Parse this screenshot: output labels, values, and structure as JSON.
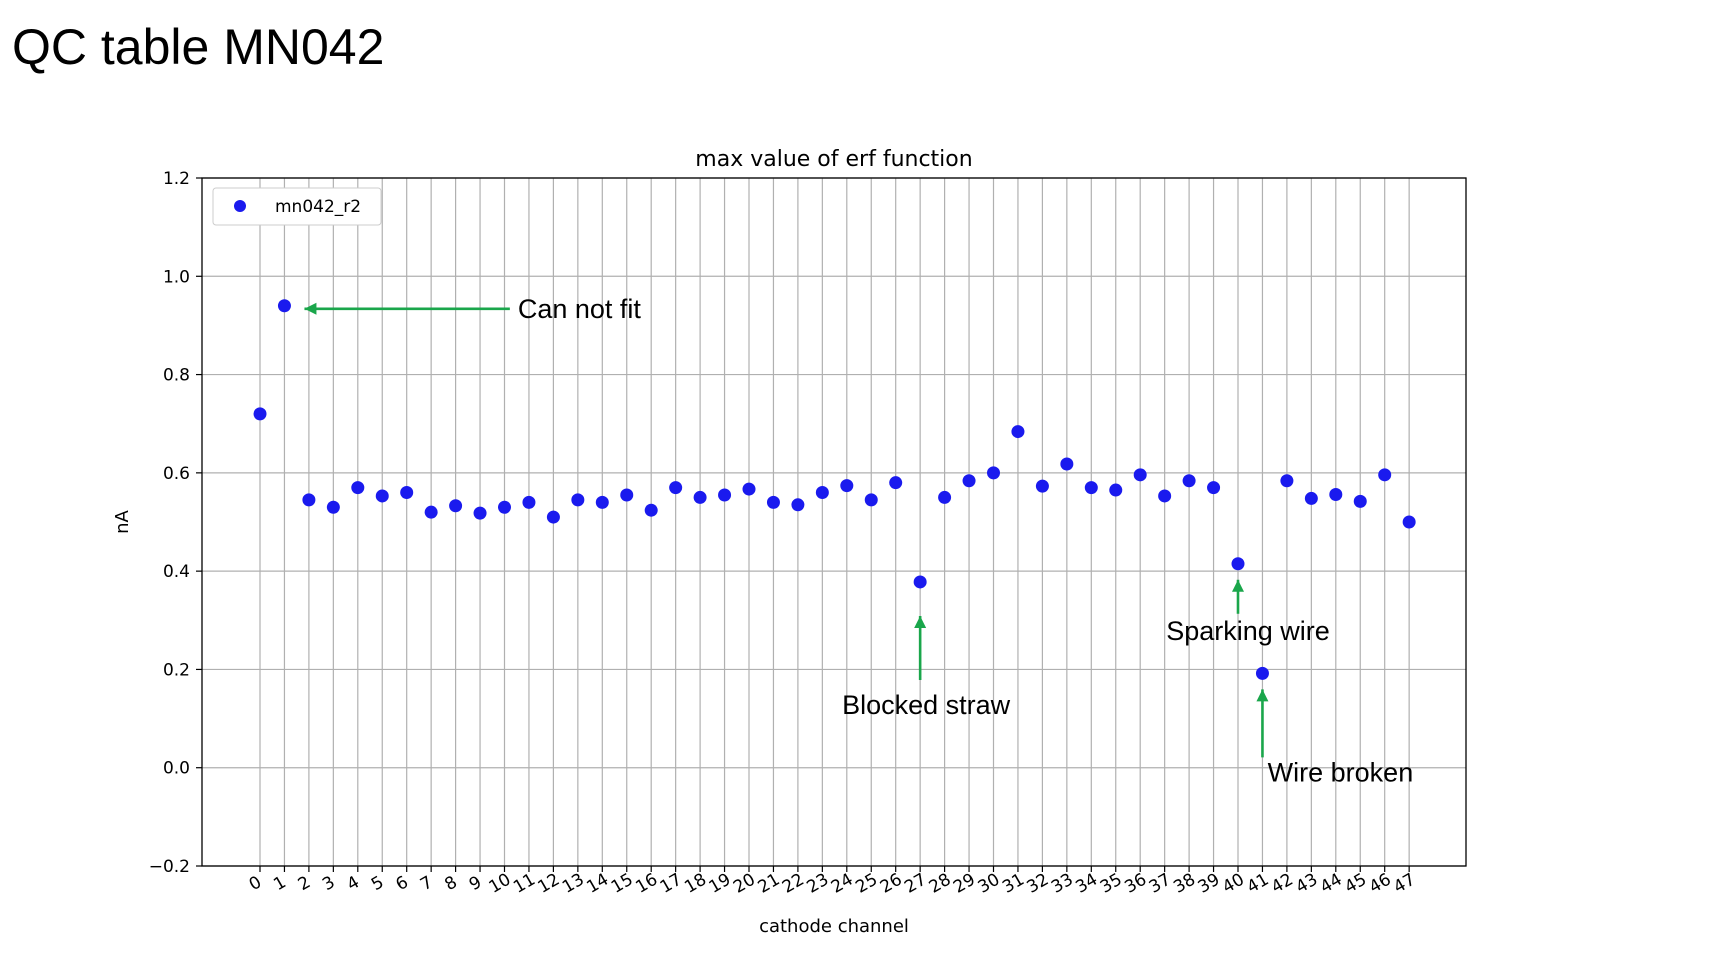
{
  "slide": {
    "title": "QC table MN042"
  },
  "chart_data": {
    "type": "scatter",
    "title": "max value of erf function",
    "xlabel": "cathode channel",
    "ylabel": "nA",
    "ylim": [
      -0.2,
      1.2
    ],
    "yticks": [
      -0.2,
      0.0,
      0.2,
      0.4,
      0.6,
      0.8,
      1.0,
      1.2
    ],
    "ytick_labels": [
      "−0.2",
      "0.0",
      "0.2",
      "0.4",
      "0.6",
      "0.8",
      "1.0",
      "1.2"
    ],
    "grid": true,
    "legend_position": "top-left",
    "color": "#1a1aee",
    "annotation_color": "#1aa64b",
    "series": [
      {
        "name": "mn042_r2",
        "x": [
          0,
          1,
          2,
          3,
          4,
          5,
          6,
          7,
          8,
          9,
          10,
          11,
          12,
          13,
          14,
          15,
          16,
          17,
          18,
          19,
          20,
          21,
          22,
          23,
          24,
          25,
          26,
          27,
          28,
          29,
          30,
          31,
          32,
          33,
          34,
          35,
          36,
          37,
          38,
          39,
          40,
          41,
          42,
          43,
          44,
          45,
          46,
          47
        ],
        "values": [
          0.72,
          0.94,
          0.545,
          0.53,
          0.57,
          0.553,
          0.56,
          0.52,
          0.533,
          0.518,
          0.53,
          0.54,
          0.51,
          0.545,
          0.54,
          0.555,
          0.524,
          0.57,
          0.55,
          0.555,
          0.567,
          0.54,
          0.535,
          0.56,
          0.574,
          0.545,
          0.58,
          0.378,
          0.55,
          0.584,
          0.6,
          0.684,
          0.573,
          0.618,
          0.57,
          0.565,
          0.596,
          0.553,
          0.584,
          0.57,
          0.415,
          0.192,
          0.584,
          0.548,
          0.556,
          0.542,
          0.596,
          0.5
        ]
      }
    ],
    "annotations": [
      {
        "text": "Can not fit",
        "x": 1,
        "y": 0.94,
        "direction": "left"
      },
      {
        "text": "Blocked straw",
        "x": 27,
        "y": 0.378,
        "direction": "up"
      },
      {
        "text": "Sparking wire",
        "x": 40,
        "y": 0.415,
        "direction": "up"
      },
      {
        "text": "Wire broken",
        "x": 41,
        "y": 0.192,
        "direction": "up"
      }
    ]
  }
}
